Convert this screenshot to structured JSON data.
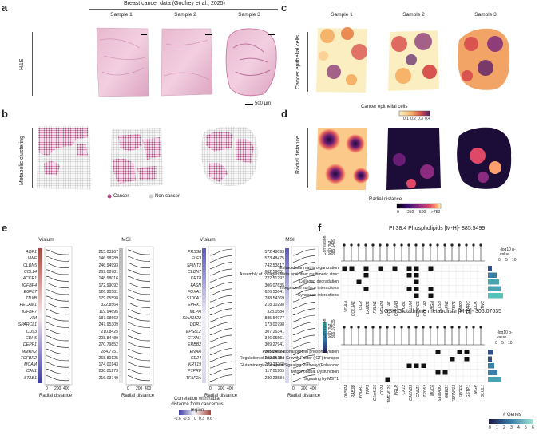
{
  "panels": {
    "a": "a",
    "b": "b",
    "c": "c",
    "d": "d",
    "e": "e",
    "f": "f"
  },
  "dataset_title": "Breast cancer data (Godfrey et al., 2025)",
  "samples": [
    "Sample 1",
    "Sample 2",
    "Sample 3"
  ],
  "row_labels": {
    "he": "H&E",
    "clustering": "Metabolic clustering",
    "cancer_cells": "Cancer epithelial cells",
    "radial": "Radial distance"
  },
  "scalebar": "500 µm",
  "cluster_legend": {
    "cancer": "Cancer",
    "noncancer": "Non-cancer",
    "cancer_color": "#b0457f",
    "noncancer_color": "#cccccc"
  },
  "cancer_colorbar": {
    "title": "Cancer epithelial cells",
    "ticks": [
      "0.1",
      "0.2",
      "0.3",
      "0.4"
    ]
  },
  "radial_colorbar": {
    "title": "Radial distance",
    "ticks": [
      "0",
      "250",
      "500",
      ">750"
    ]
  },
  "panel_e": {
    "headers": [
      "Visium",
      "MSI",
      "Visium",
      "MSI"
    ],
    "genes_left": [
      "AQP1",
      "VWF",
      "CLDN5",
      "CCL14",
      "ACKR1",
      "IGFBP4",
      "EGFL7",
      "TNXB",
      "PECAM1",
      "IGFBP7",
      "VIM",
      "SPARCL1",
      "CD93",
      "CDH5",
      "DEPP1",
      "MMRN2",
      "TGFBR2",
      "MCAM",
      "CAV1",
      "STAB1"
    ],
    "mz_left": [
      "215.03267",
      "146.98289",
      "246.94993",
      "269.08781",
      "148.98016",
      "172.99092",
      "126.90581",
      "179.05598",
      "322.8564",
      "119.94695",
      "187.08662",
      "247.95309",
      "210.8425",
      "208.84489",
      "270.79852",
      "284.7751",
      "268.80125",
      "174.00143",
      "230.01273",
      "216.03749"
    ],
    "genes_right": [
      "PRSS8",
      "ELF3",
      "SPINT2",
      "CLDN7",
      "KRT8",
      "FASN",
      "FOXA1",
      "S100A1",
      "EPHX1",
      "MLPH",
      "KIAA1522",
      "DDR1",
      "EPS8L2",
      "CTXN1",
      "ERBB2",
      "ENAH",
      "CD24",
      "KRT19",
      "PTPRF",
      "TFAP2A"
    ],
    "mz_right": [
      "572.48093",
      "573.48475",
      "742.53817",
      "682.59051",
      "722.51292",
      "306.07635",
      "626.53641",
      "788.54369",
      "218.10298",
      "328.0584",
      "885.54977",
      "173.00798",
      "307.26341",
      "346.05561",
      "309.27941",
      "305.24774",
      "282.25184",
      "279.23268",
      "117.01909",
      "280.23584"
    ],
    "xlabel": "Radial distance",
    "xticks": [
      "0",
      "200",
      "400"
    ],
    "colorbar_title": "Correlation with radial distance from cancerous region",
    "colorbar_ticks": [
      "-0.6",
      "-0.3",
      "0",
      "0.3",
      "0.6"
    ]
  },
  "panel_f": {
    "top": {
      "title": "PI 38:4 Phospholipids [M-H]- 885.5499",
      "ylabel": "Correlation with m/z 885.5499",
      "terms": [
        "Extracellular matrix organization",
        "Assembly of collagen fibrils and other multimeric structures",
        "Collagen degradation",
        "Integrin cell surface interactions",
        "Syndecan interactions"
      ],
      "genes": [
        "VCAN",
        "COL3A1",
        "ISLR",
        "LAMB1",
        "FBLN1",
        "MFAP4",
        "COL1A1",
        "COL6A3",
        "ITGB1",
        "LUM",
        "CTHRC1",
        "COL1A2",
        "BGN",
        "CTSB",
        "FN1",
        "LTBP1",
        "MMP2",
        "SPARC",
        "LOX",
        "TNC"
      ],
      "axis_title": "-log10 p-value",
      "axis_ticks": [
        "0",
        "5",
        "10"
      ]
    },
    "bottom": {
      "title": "GSH Glutathione metabolism [M-H]- 306.07635",
      "ylabel": "Correlation with m/z 306.07635",
      "terms": [
        "Post-translational protein phosphorylation",
        "Regulation of Insulin-like Growth Factor (IGF) transport and uptake by IGFBPs",
        "Glutaminergic Receptor Signaling Pathway (Enhanced)",
        "Mitochondrial Dysfunction",
        "Signaling by MST1"
      ],
      "genes": [
        "DUSP4",
        "RAB3B",
        "PHGR1",
        "TFF3",
        "C1orf116",
        "CD24",
        "TMEM125",
        "PRLR",
        "CA12",
        "CACNB3",
        "CASZ1",
        "TPD52",
        "MUC6",
        "SEMA3G",
        "GREB1",
        "TSPAN13",
        "SPDEF",
        "GSTP1",
        "MGP",
        "GLUL1"
      ],
      "axis_title": "-log10 p-value",
      "axis_ticks": [
        "0",
        "5",
        "10"
      ]
    },
    "legend": {
      "title": "# Genes",
      "ticks": [
        "0",
        "1",
        "2",
        "3",
        "4",
        "5",
        "6"
      ]
    }
  }
}
